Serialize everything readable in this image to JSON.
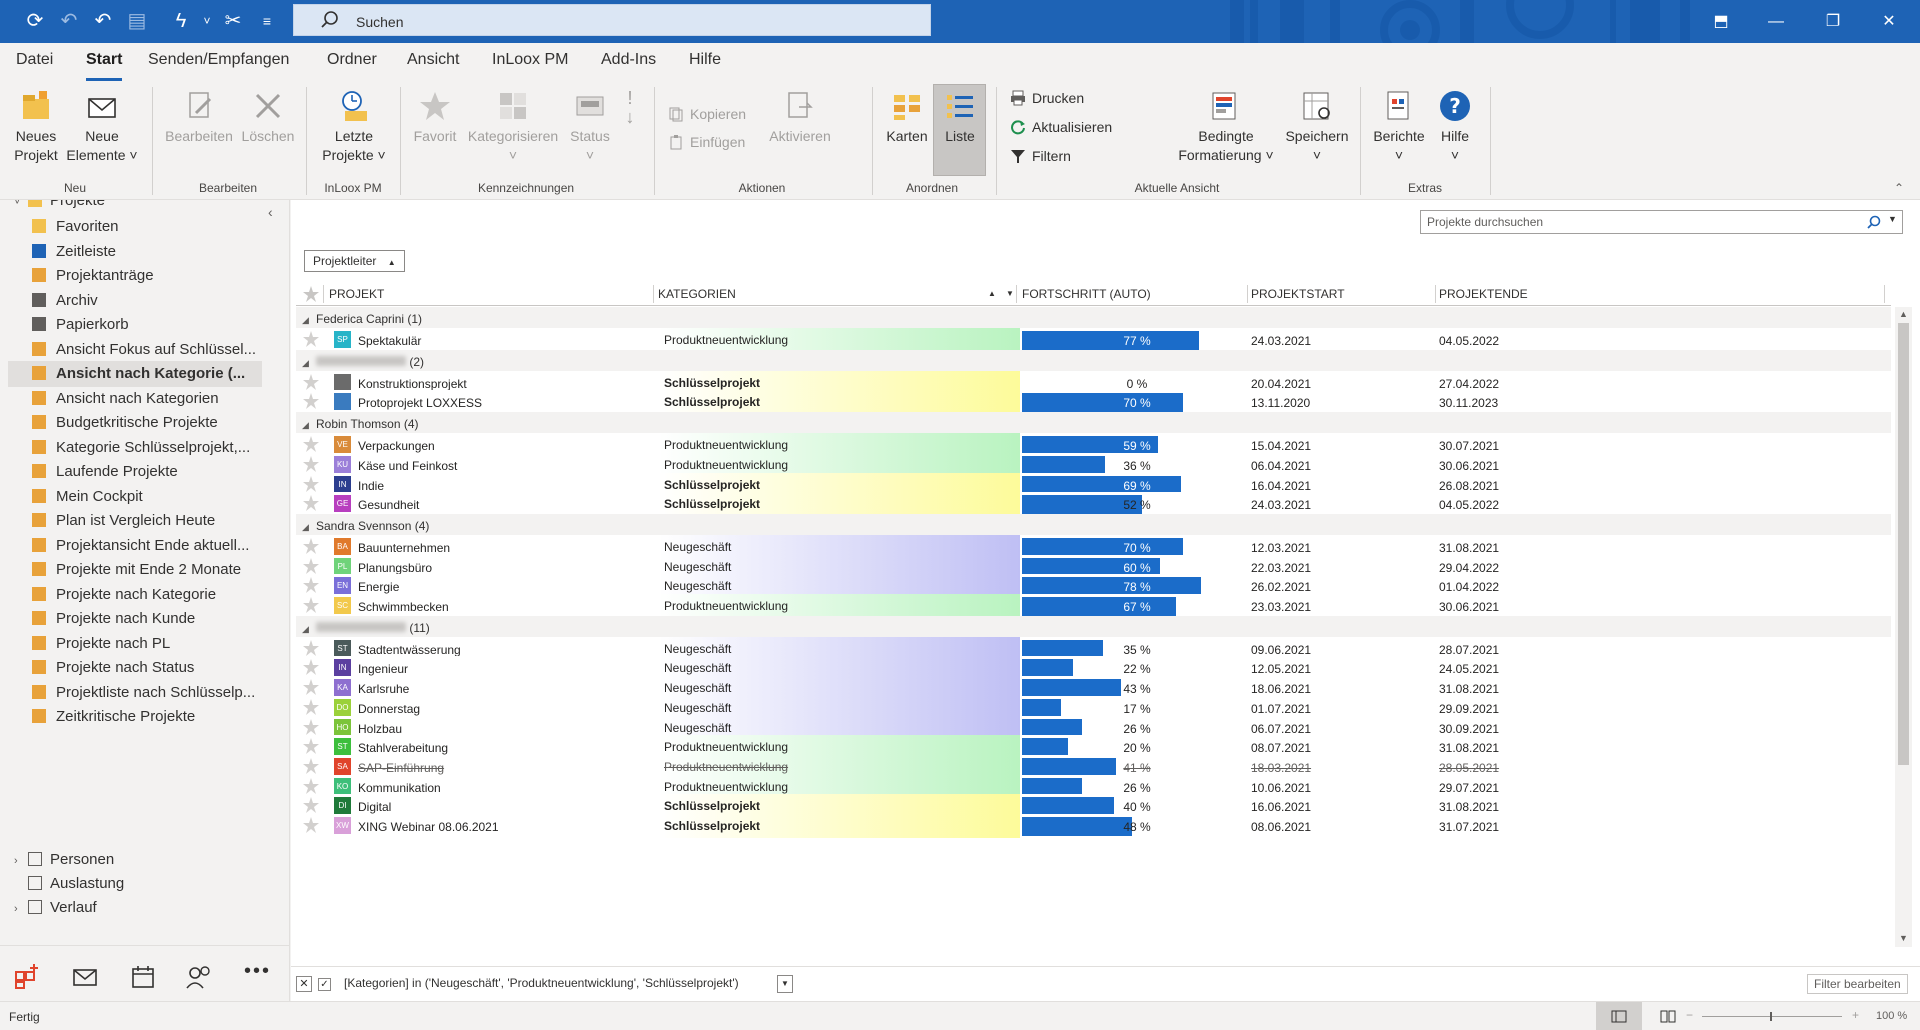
{
  "colors": {
    "accent": "#1e63b5",
    "bar": "#1b6cc9"
  },
  "titlebar": {
    "search_placeholder": "Suchen"
  },
  "menu": [
    "Datei",
    "Start",
    "Senden/Empfangen",
    "Ordner",
    "Ansicht",
    "InLoox PM",
    "Add-Ins",
    "Hilfe"
  ],
  "ribbon": {
    "new_project": [
      "Neues",
      "Projekt"
    ],
    "new_items": [
      "Neue",
      "Elemente ˅"
    ],
    "edit": "Bearbeiten",
    "delete": "Löschen",
    "recent": [
      "Letzte",
      "Projekte ˅"
    ],
    "favorite": "Favorit",
    "categorize": [
      "Kategorisieren",
      "˅"
    ],
    "status": [
      "Status",
      "˅"
    ],
    "copy": "Kopieren",
    "paste": "Einfügen",
    "move": "Aktivieren",
    "cards": "Karten",
    "list": "Liste",
    "print": "Drucken",
    "refresh": "Aktualisieren",
    "filter": "Filtern",
    "cond_format": [
      "Bedingte",
      "Formatierung ˅"
    ],
    "save": [
      "Speichern",
      "˅"
    ],
    "reports": [
      "Berichte",
      "˅"
    ],
    "help": [
      "Hilfe",
      "˅"
    ],
    "groups": [
      "Neu",
      "Bearbeiten",
      "InLoox PM",
      "Kennzeichnungen",
      "Aktionen",
      "Anordnen",
      "Aktuelle Ansicht",
      "Extras"
    ]
  },
  "nav": {
    "root": "Projekte",
    "items": [
      "Favoriten",
      "Zeitleiste",
      "Projektanträge",
      "Archiv",
      "Papierkorb",
      "Ansicht Fokus auf Schlüssel...",
      "Ansicht nach Kategorie (...",
      "Ansicht nach Kategorien",
      "Budgetkritische Projekte",
      "Kategorie Schlüsselprojekt,...",
      "Laufende Projekte",
      "Mein Cockpit",
      "Plan ist Vergleich Heute",
      "Projektansicht Ende aktuell...",
      "Projekte mit Ende 2 Monate",
      "Projekte nach Kategorie",
      "Projekte nach Kunde",
      "Projekte nach PL",
      "Projekte nach Status",
      "Projektliste nach Schlüsselp...",
      "Zeitkritische Projekte"
    ],
    "selected_index": 6,
    "bottom_items": [
      "Personen",
      "Auslastung",
      "Verlauf"
    ]
  },
  "content": {
    "search_placeholder": "Projekte durchsuchen",
    "group_by": "Projektleiter",
    "columns": [
      "PROJEKT",
      "KATEGORIEN",
      "FORTSCHRITT (AUTO)",
      "PROJEKTSTART",
      "PROJEKTENDE"
    ],
    "groups": [
      {
        "label": "Federica Caprini (1)",
        "blurred": false,
        "rows": [
          {
            "code": "SP",
            "color": "#27b4c8",
            "name": "Spektakulär",
            "cat": "Produktneuentwicklung",
            "ctype": "pro",
            "pct": 77,
            "start": "24.03.2021",
            "end": "04.05.2022"
          }
        ]
      },
      {
        "label": "(2)",
        "blurred": true,
        "rows": [
          {
            "code": "",
            "color": "#6b6b6b",
            "name": "Konstruktionsprojekt",
            "cat": "Schlüsselprojekt",
            "ctype": "sch",
            "pct": 0,
            "start": "20.04.2021",
            "end": "27.04.2022"
          },
          {
            "code": "",
            "color": "#3a7bbf",
            "name": "Protoprojekt LOXXESS",
            "cat": "Schlüsselprojekt",
            "ctype": "sch",
            "pct": 70,
            "start": "13.11.2020",
            "end": "30.11.2023"
          }
        ]
      },
      {
        "label": "Robin Thomson (4)",
        "blurred": false,
        "rows": [
          {
            "code": "VE",
            "color": "#d98b3a",
            "name": "Verpackungen",
            "cat": "Produktneuentwicklung",
            "ctype": "pro",
            "pct": 59,
            "start": "15.04.2021",
            "end": "30.07.2021"
          },
          {
            "code": "KU",
            "color": "#9b7fd9",
            "name": "Käse und Feinkost",
            "cat": "Produktneuentwicklung",
            "ctype": "pro",
            "pct": 36,
            "start": "06.04.2021",
            "end": "30.06.2021"
          },
          {
            "code": "IN",
            "color": "#2c3e8f",
            "name": "Indie",
            "cat": "Schlüsselprojekt",
            "ctype": "sch",
            "pct": 69,
            "start": "16.04.2021",
            "end": "26.08.2021"
          },
          {
            "code": "GE",
            "color": "#b83fbf",
            "name": "Gesundheit",
            "cat": "Schlüsselprojekt",
            "ctype": "sch",
            "pct": 52,
            "start": "24.03.2021",
            "end": "04.05.2022"
          }
        ]
      },
      {
        "label": "Sandra Svennson (4)",
        "blurred": false,
        "rows": [
          {
            "code": "BA",
            "color": "#e07a2c",
            "name": "Bauunternehmen",
            "cat": "Neugeschäft",
            "ctype": "neu",
            "pct": 70,
            "start": "12.03.2021",
            "end": "31.08.2021"
          },
          {
            "code": "PL",
            "color": "#6fd37a",
            "name": "Planungsbüro",
            "cat": "Neugeschäft",
            "ctype": "neu",
            "pct": 60,
            "start": "22.03.2021",
            "end": "29.04.2022"
          },
          {
            "code": "EN",
            "color": "#7a6fd9",
            "name": "Energie",
            "cat": "Neugeschäft",
            "ctype": "neu",
            "pct": 78,
            "start": "26.02.2021",
            "end": "01.04.2022"
          },
          {
            "code": "SC",
            "color": "#f2c94c",
            "name": "Schwimmbecken",
            "cat": "Produktneuentwicklung",
            "ctype": "pro",
            "pct": 67,
            "start": "23.03.2021",
            "end": "30.06.2021"
          }
        ]
      },
      {
        "label": "(11)",
        "blurred": true,
        "rows": [
          {
            "code": "ST",
            "color": "#4a5a5a",
            "name": "Stadtentwässerung",
            "cat": "Neugeschäft",
            "ctype": "neu",
            "pct": 35,
            "start": "09.06.2021",
            "end": "28.07.2021"
          },
          {
            "code": "IN",
            "color": "#5b3fa0",
            "name": "Ingenieur",
            "cat": "Neugeschäft",
            "ctype": "neu",
            "pct": 22,
            "start": "12.05.2021",
            "end": "24.05.2021"
          },
          {
            "code": "KA",
            "color": "#8e6fd0",
            "name": "Karlsruhe",
            "cat": "Neugeschäft",
            "ctype": "neu",
            "pct": 43,
            "start": "18.06.2021",
            "end": "31.08.2021"
          },
          {
            "code": "DO",
            "color": "#9bd13a",
            "name": "Donnerstag",
            "cat": "Neugeschäft",
            "ctype": "neu",
            "pct": 17,
            "start": "01.07.2021",
            "end": "29.09.2021"
          },
          {
            "code": "HO",
            "color": "#7cc43a",
            "name": "Holzbau",
            "cat": "Neugeschäft",
            "ctype": "neu",
            "pct": 26,
            "start": "06.07.2021",
            "end": "30.09.2021"
          },
          {
            "code": "ST",
            "color": "#3dbf3d",
            "name": "Stahlverabeitung",
            "cat": "Produktneuentwicklung",
            "ctype": "pro",
            "pct": 20,
            "start": "08.07.2021",
            "end": "31.08.2021"
          },
          {
            "code": "SA",
            "color": "#e0442c",
            "name": "SAP-Einführung",
            "cat": "Produktneuentwicklung",
            "ctype": "pro",
            "pct": 41,
            "start": "18.03.2021",
            "end": "28.05.2021",
            "struck": true
          },
          {
            "code": "KO",
            "color": "#3dbf7a",
            "name": "Kommunikation",
            "cat": "Produktneuentwicklung",
            "ctype": "pro",
            "pct": 26,
            "start": "10.06.2021",
            "end": "29.07.2021"
          },
          {
            "code": "DI",
            "color": "#1f7a3a",
            "name": "Digital",
            "cat": "Schlüsselprojekt",
            "ctype": "sch",
            "pct": 40,
            "start": "16.06.2021",
            "end": "31.08.2021"
          },
          {
            "code": "XW",
            "color": "#d9a0d9",
            "name": "XING Webinar 08.06.2021",
            "cat": "Schlüsselprojekt",
            "ctype": "sch",
            "pct": 48,
            "start": "08.06.2021",
            "end": "31.07.2021"
          }
        ]
      }
    ],
    "filter_text": "[Kategorien] in ('Neugeschäft', 'Produktneuentwicklung', 'Schlüsselprojekt')",
    "filter_edit": "Filter bearbeiten"
  },
  "status": {
    "text": "Fertig",
    "zoom": "100 %"
  }
}
